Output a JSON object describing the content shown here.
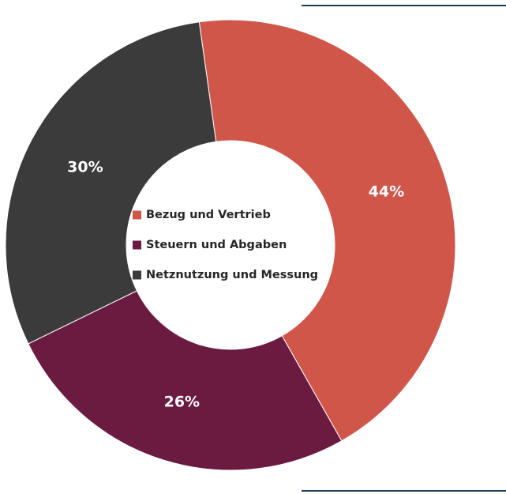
{
  "chart_data": {
    "type": "pie",
    "variant": "donut",
    "categories": [
      "Bezug und Vertrieb",
      "Steuern und Abgaben",
      "Netznutzung und Messung"
    ],
    "values": [
      44,
      26,
      30
    ],
    "labels": [
      "44%",
      "26%",
      "30%"
    ],
    "colors": [
      "#d0564a",
      "#6b1a40",
      "#3b3b3b"
    ],
    "legend": {
      "placement": "center",
      "entries": [
        "Bezug und Vertrieb",
        "Steuern und Abgaben",
        "Netznutzung und Messung"
      ]
    },
    "title": "",
    "start_angle_deg": -98
  }
}
